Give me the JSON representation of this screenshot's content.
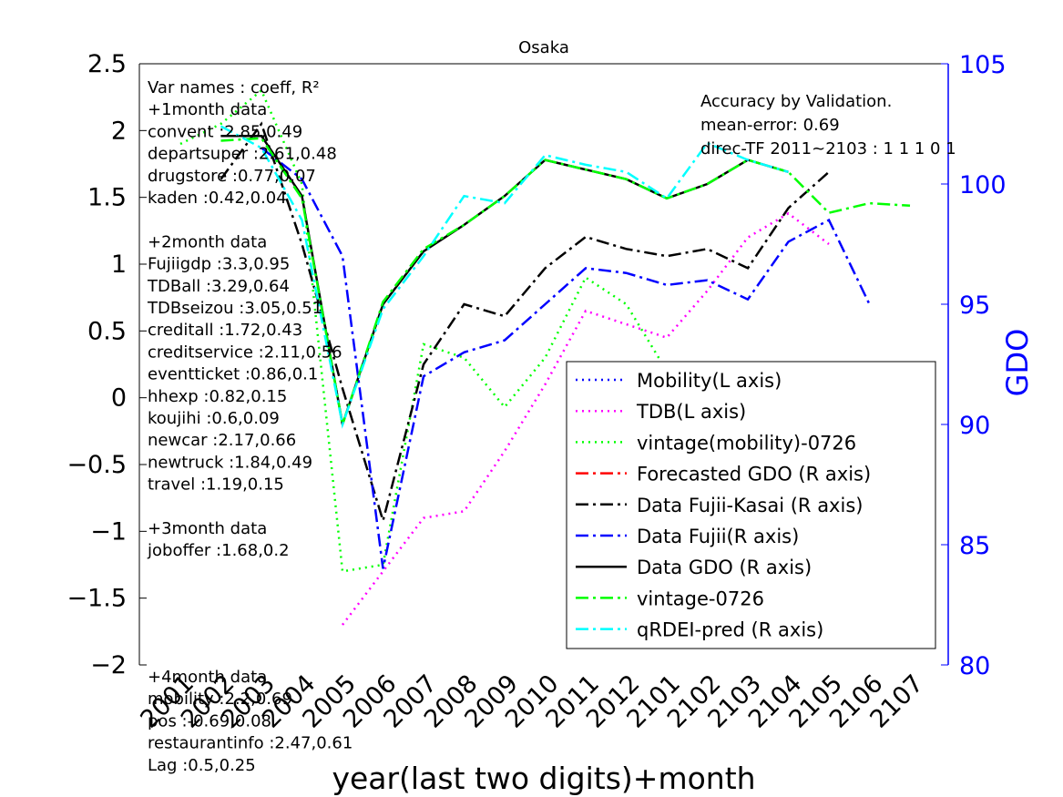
{
  "chart_data": {
    "type": "line",
    "title": "Osaka",
    "xlabel": "year(last two digits)+month",
    "ylabel_left": "",
    "ylabel_right": "GDO",
    "ylim_left": [
      -2,
      2.5
    ],
    "ylim_right": [
      80,
      105
    ],
    "grid": false,
    "legend_position": "lower-right",
    "categories": [
      "2001",
      "2002",
      "2003",
      "2004",
      "2005",
      "2006",
      "2007",
      "2008",
      "2009",
      "2010",
      "2011",
      "2012",
      "2101",
      "2102",
      "2103",
      "2104",
      "2105",
      "2106",
      "2107"
    ],
    "left_ticks": [
      "2.5",
      "2",
      "1.5",
      "1",
      "0.5",
      "0",
      "−0.5",
      "−1",
      "−1.5",
      "−2"
    ],
    "left_tick_values": [
      2.5,
      2,
      1.5,
      1,
      0.5,
      0,
      -0.5,
      -1,
      -1.5,
      -2
    ],
    "right_ticks": [
      "105",
      "100",
      "95",
      "90",
      "85",
      "80"
    ],
    "right_tick_values": [
      105,
      100,
      95,
      90,
      85,
      80
    ],
    "series": [
      {
        "name": "Mobility(L axis)",
        "axis": "left",
        "color": "#0000ff",
        "dash": "2,5",
        "width": 2.5,
        "values": [
          null,
          null,
          null,
          null,
          null,
          null,
          null,
          null,
          null,
          null,
          null,
          null,
          null,
          null,
          null,
          null,
          null,
          null,
          null
        ]
      },
      {
        "name": "TDB(L axis)",
        "axis": "left",
        "color": "#ff00ff",
        "dash": "2,5",
        "width": 2.5,
        "values": [
          null,
          null,
          null,
          null,
          -1.7,
          -1.3,
          -0.9,
          -0.85,
          -0.4,
          0.1,
          0.65,
          0.55,
          0.45,
          0.8,
          1.2,
          1.38,
          1.15,
          null,
          null
        ]
      },
      {
        "name": "vintage(mobility)-0726",
        "axis": "left",
        "color": "#00ff00",
        "dash": "2,5",
        "width": 2.5,
        "values": [
          1.9,
          2.05,
          2.3,
          1.6,
          -1.3,
          -1.25,
          0.4,
          0.3,
          -0.07,
          0.3,
          0.9,
          0.7,
          0.2,
          null,
          0.28,
          null,
          null,
          null,
          null
        ]
      },
      {
        "name": "Forecasted GDO (R axis)",
        "axis": "right",
        "color": "#ff0000",
        "dash": "14,5,3,5",
        "width": 2.5,
        "values": [
          null,
          null,
          null,
          null,
          null,
          null,
          null,
          null,
          null,
          null,
          null,
          null,
          null,
          null,
          null,
          null,
          null,
          null,
          null
        ]
      },
      {
        "name": "Data Fujii-Kasai (R axis)",
        "axis": "right",
        "color": "#000000",
        "dash": "14,5,3,5",
        "width": 2.5,
        "values": [
          null,
          100.2,
          102.5,
          97.5,
          91.5,
          86.0,
          92.5,
          95.0,
          94.5,
          96.5,
          97.8,
          97.3,
          97.0,
          97.3,
          96.5,
          99.0,
          100.5,
          null,
          null
        ]
      },
      {
        "name": "Data Fujii(R axis)",
        "axis": "right",
        "color": "#0000ff",
        "dash": "14,5,3,5",
        "width": 2.5,
        "values": [
          null,
          null,
          101.5,
          100.2,
          97.0,
          84.0,
          92.0,
          93.0,
          93.5,
          95.0,
          96.5,
          96.3,
          95.8,
          96.0,
          95.2,
          97.6,
          98.5,
          95.0,
          null
        ]
      },
      {
        "name": "Data GDO (R axis)",
        "axis": "right",
        "color": "#000000",
        "dash": "",
        "width": 2.5,
        "values": [
          null,
          102.0,
          102.0,
          99.5,
          90.0,
          95.0,
          97.2,
          98.3,
          99.5,
          101.0,
          100.6,
          100.2,
          99.4,
          100.0,
          101.0,
          100.5,
          null,
          null,
          null
        ]
      },
      {
        "name": "vintage-0726",
        "axis": "right",
        "color": "#00ff00",
        "dash": "14,5,3,5",
        "width": 2.5,
        "values": [
          null,
          101.8,
          101.9,
          99.4,
          90.0,
          95.1,
          97.3,
          98.3,
          99.5,
          101.0,
          100.6,
          100.2,
          99.4,
          100.0,
          101.0,
          100.5,
          98.8,
          99.2,
          99.1
        ]
      },
      {
        "name": "qRDEI-pred (R axis)",
        "axis": "right",
        "color": "#00ffff",
        "dash": "14,5,3,5",
        "width": 2.5,
        "values": [
          null,
          102.4,
          101.5,
          98.5,
          90.0,
          94.8,
          97.0,
          99.5,
          99.2,
          101.2,
          100.8,
          100.5,
          99.4,
          101.7,
          101.0,
          100.5,
          null,
          null,
          null
        ]
      }
    ],
    "annotations_left": [
      "Var names : coeff, R²",
      "+1month data",
      "convent :2.85,0.49",
      "departsuper :2.61,0.48",
      "drugstore :0.77,0.07",
      "kaden :0.42,0.04",
      "",
      "+2month data",
      "Fujiigdp :3.3,0.95",
      "TDBall :3.29,0.64",
      "TDBseizou :3.05,0.51",
      "creditall :1.72,0.43",
      "creditservice :2.11,0.56",
      "eventticket :0.86,0.1",
      "hhexp :0.82,0.15",
      "koujihi :0.6,0.09",
      "newcar :2.17,0.66",
      "newtruck :1.84,0.49",
      "travel :1.19,0.15",
      "",
      "+3month data",
      "joboffer :1.68,0.2",
      "",
      "+4month data",
      "mobility :2.2,0.69",
      "pos :-0.69,0.08",
      "restaurantinfo :2.47,0.61",
      "Lag :0.5,0.25"
    ],
    "annotations_right": [
      "Accuracy by Validation.",
      "mean-error: 0.69",
      "direc-TF 2011~2103 : 1   1   1  0  1"
    ]
  }
}
